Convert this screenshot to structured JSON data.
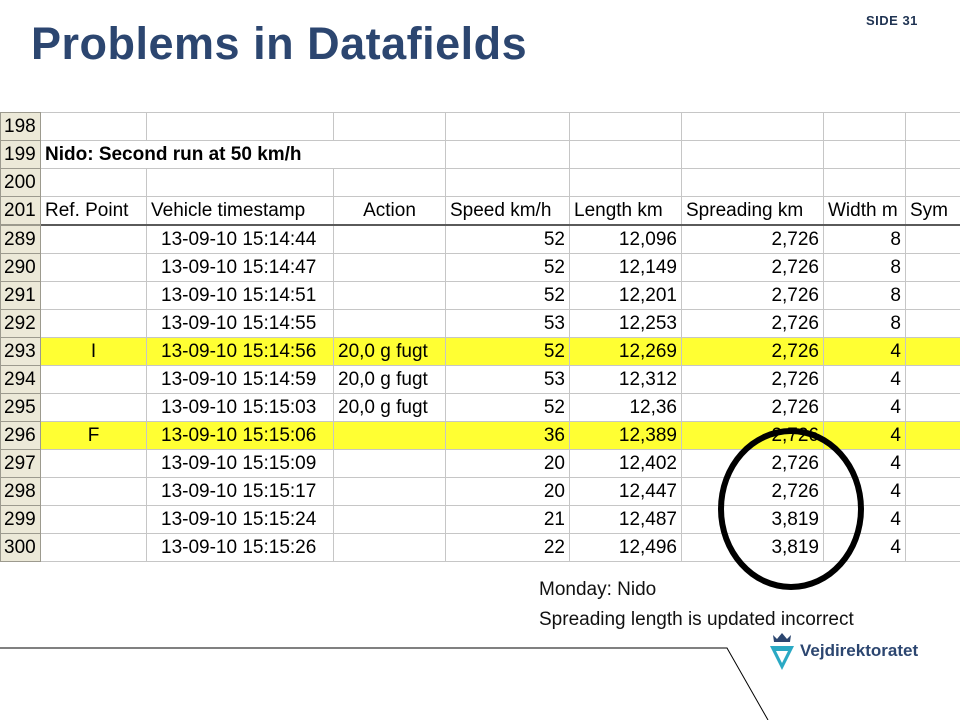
{
  "slide": {
    "number": "SIDE 31",
    "title": "Problems in Datafields"
  },
  "spreadsheet": {
    "rows": [
      {
        "n": "198",
        "cells": [
          "",
          "",
          "",
          "",
          "",
          "",
          "",
          ""
        ]
      },
      {
        "n": "199",
        "title": "Nido: Second run at 50 km/h"
      },
      {
        "n": "200",
        "cells": [
          "",
          "",
          "",
          "",
          "",
          "",
          "",
          ""
        ]
      },
      {
        "n": "201",
        "header": true,
        "cells": [
          "Ref. Point",
          "Vehicle timestamp",
          "Action",
          "Speed km/h",
          "Length km",
          "Spreading km",
          "Width m",
          "Sym"
        ]
      },
      {
        "n": "289",
        "cells": [
          "",
          "13-09-10 15:14:44",
          "",
          "52",
          "12,096",
          "2,726",
          "8",
          ""
        ]
      },
      {
        "n": "290",
        "cells": [
          "",
          "13-09-10 15:14:47",
          "",
          "52",
          "12,149",
          "2,726",
          "8",
          ""
        ]
      },
      {
        "n": "291",
        "cells": [
          "",
          "13-09-10 15:14:51",
          "",
          "52",
          "12,201",
          "2,726",
          "8",
          ""
        ]
      },
      {
        "n": "292",
        "cells": [
          "",
          "13-09-10 15:14:55",
          "",
          "53",
          "12,253",
          "2,726",
          "8",
          ""
        ]
      },
      {
        "n": "293",
        "highlight": true,
        "cells": [
          "I",
          "13-09-10 15:14:56",
          "20,0 g fugt",
          "52",
          "12,269",
          "2,726",
          "4",
          ""
        ]
      },
      {
        "n": "294",
        "cells": [
          "",
          "13-09-10 15:14:59",
          "20,0 g fugt",
          "53",
          "12,312",
          "2,726",
          "4",
          ""
        ]
      },
      {
        "n": "295",
        "cells": [
          "",
          "13-09-10 15:15:03",
          "20,0 g fugt",
          "52",
          "12,36",
          "2,726",
          "4",
          ""
        ]
      },
      {
        "n": "296",
        "highlight": true,
        "cells": [
          "F",
          "13-09-10 15:15:06",
          "",
          "36",
          "12,389",
          "2,726",
          "4",
          ""
        ]
      },
      {
        "n": "297",
        "cells": [
          "",
          "13-09-10 15:15:09",
          "",
          "20",
          "12,402",
          "2,726",
          "4",
          ""
        ]
      },
      {
        "n": "298",
        "cells": [
          "",
          "13-09-10 15:15:17",
          "",
          "20",
          "12,447",
          "2,726",
          "4",
          ""
        ]
      },
      {
        "n": "299",
        "cells": [
          "",
          "13-09-10 15:15:24",
          "",
          "21",
          "12,487",
          "3,819",
          "4",
          ""
        ]
      },
      {
        "n": "300",
        "cells": [
          "",
          "13-09-10 15:15:26",
          "",
          "22",
          "12,496",
          "3,819",
          "4",
          ""
        ]
      }
    ]
  },
  "annotation": {
    "line1": "Monday: Nido",
    "line2": "Spreading length is updated incorrect"
  },
  "logo": {
    "text": "Vejdirektoratet",
    "icon": "crown-shield-icon"
  },
  "colors": {
    "title": "#2c4670",
    "highlight": "#ffff33",
    "row_header": "#ece9d8"
  }
}
